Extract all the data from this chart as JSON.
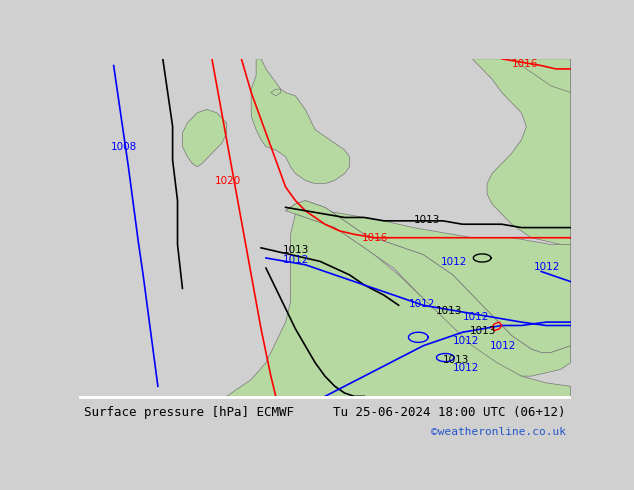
{
  "title_left": "Surface pressure [hPa] ECMWF",
  "title_right": "Tu 25-06-2024 18:00 UTC (06+12)",
  "copyright": "©weatheronline.co.uk",
  "background_color": "#e8e8e8",
  "land_color": "#b5d9a0",
  "fig_width": 6.34,
  "fig_height": 4.9,
  "dpi": 100
}
